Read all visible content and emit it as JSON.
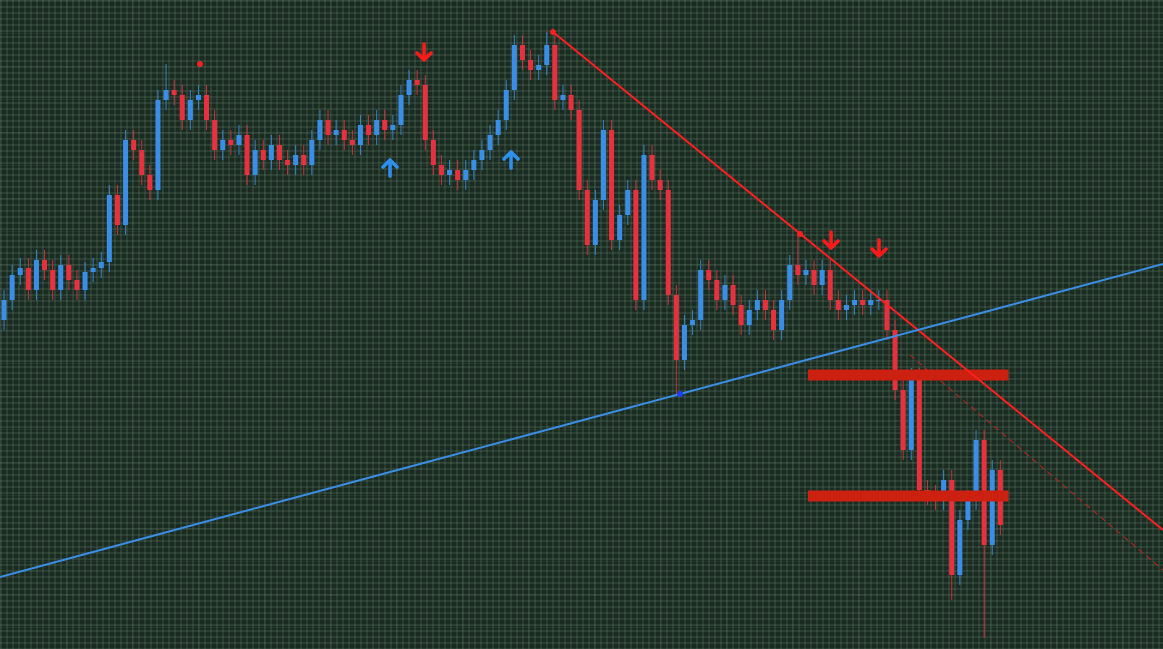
{
  "chart_data": {
    "type": "candlestick",
    "xlim": [
      -0.5,
      143.08
    ],
    "ylim": [
      0,
      649
    ],
    "up_color": "#3a8ee6",
    "down_color": "#e8313f",
    "open": [
      329,
      349,
      374,
      381,
      359,
      389,
      379,
      359,
      384,
      369,
      359,
      377,
      381,
      387,
      454,
      424,
      509,
      499,
      474,
      459,
      549,
      559,
      554,
      529,
      549,
      554,
      529,
      499,
      509,
      504,
      514,
      474,
      499,
      489,
      504,
      489,
      484,
      494,
      484,
      509,
      529,
      514,
      519,
      509,
      504,
      524,
      514,
      529,
      519,
      524,
      554,
      569,
      564,
      509,
      484,
      474,
      479,
      469,
      479,
      489,
      499,
      514,
      529,
      559,
      604,
      589,
      579,
      584,
      604,
      549,
      554,
      539,
      459,
      404,
      449,
      519,
      409,
      434,
      459,
      349,
      494,
      469,
      459,
      354,
      289,
      324,
      329,
      379,
      369,
      349,
      364,
      344,
      324,
      339,
      349,
      339,
      319,
      349,
      384,
      374,
      379,
      364,
      379,
      349,
      339,
      344,
      349,
      344,
      349,
      349,
      319,
      259,
      199,
      271,
      159,
      154,
      149,
      169,
      74,
      129,
      149,
      209,
      104,
      179
    ],
    "high": [
      359,
      384,
      391,
      391,
      399,
      399,
      389,
      394,
      394,
      379,
      387,
      391,
      397,
      464,
      464,
      519,
      519,
      509,
      484,
      559,
      585,
      569,
      564,
      559,
      564,
      564,
      539,
      519,
      519,
      524,
      524,
      509,
      509,
      514,
      514,
      499,
      504,
      504,
      519,
      539,
      539,
      529,
      529,
      519,
      534,
      534,
      539,
      539,
      534,
      564,
      579,
      579,
      574,
      519,
      494,
      489,
      489,
      489,
      499,
      509,
      524,
      539,
      569,
      614,
      614,
      599,
      594,
      617,
      614,
      564,
      564,
      549,
      469,
      459,
      529,
      529,
      444,
      469,
      469,
      504,
      504,
      479,
      469,
      364,
      334,
      339,
      389,
      389,
      379,
      374,
      374,
      354,
      349,
      359,
      359,
      349,
      359,
      394,
      415,
      389,
      389,
      389,
      389,
      359,
      354,
      359,
      359,
      359,
      359,
      359,
      329,
      269,
      281,
      281,
      169,
      164,
      179,
      179,
      139,
      159,
      219,
      219,
      189,
      189
    ],
    "low": [
      319,
      339,
      364,
      349,
      349,
      369,
      349,
      349,
      359,
      349,
      349,
      367,
      371,
      377,
      414,
      414,
      489,
      464,
      449,
      449,
      539,
      544,
      519,
      519,
      539,
      519,
      489,
      489,
      494,
      494,
      464,
      464,
      479,
      479,
      479,
      474,
      474,
      474,
      474,
      499,
      504,
      504,
      499,
      494,
      494,
      504,
      504,
      509,
      509,
      514,
      544,
      554,
      499,
      474,
      464,
      464,
      459,
      459,
      469,
      479,
      489,
      504,
      519,
      549,
      579,
      569,
      569,
      574,
      539,
      539,
      529,
      449,
      394,
      394,
      439,
      399,
      399,
      424,
      339,
      339,
      459,
      449,
      344,
      255,
      279,
      314,
      319,
      359,
      339,
      339,
      334,
      314,
      314,
      329,
      329,
      309,
      309,
      339,
      364,
      364,
      354,
      354,
      339,
      329,
      329,
      334,
      334,
      334,
      339,
      309,
      249,
      189,
      189,
      149,
      144,
      139,
      139,
      49,
      64,
      119,
      139,
      11,
      94,
      114
    ],
    "close": [
      349,
      374,
      381,
      359,
      389,
      379,
      359,
      384,
      369,
      359,
      377,
      381,
      387,
      454,
      424,
      509,
      499,
      474,
      459,
      549,
      559,
      554,
      529,
      549,
      554,
      529,
      499,
      509,
      504,
      514,
      474,
      499,
      489,
      504,
      489,
      484,
      494,
      484,
      509,
      529,
      514,
      519,
      509,
      504,
      524,
      514,
      529,
      519,
      524,
      554,
      569,
      564,
      509,
      484,
      474,
      479,
      469,
      479,
      489,
      499,
      514,
      529,
      559,
      604,
      589,
      579,
      584,
      604,
      549,
      554,
      539,
      459,
      404,
      449,
      519,
      409,
      434,
      459,
      349,
      494,
      469,
      459,
      354,
      289,
      324,
      329,
      379,
      369,
      349,
      364,
      344,
      324,
      339,
      349,
      339,
      319,
      349,
      384,
      374,
      379,
      364,
      379,
      349,
      339,
      344,
      349,
      344,
      349,
      349,
      319,
      259,
      199,
      271,
      159,
      154,
      149,
      169,
      74,
      129,
      149,
      209,
      104,
      179,
      124
    ],
    "trendlines": [
      {
        "color": "#ff1f1f",
        "style": "solid",
        "x": [
          67.77,
          143.08
        ],
        "y": [
          617,
          119
        ]
      },
      {
        "color": "#3a8ee6",
        "style": "solid",
        "x": [
          -0.5,
          143.08
        ],
        "y": [
          72,
          385
        ]
      },
      {
        "color": "#c0221c",
        "style": "dashed",
        "x": [
          111.85,
          143.08
        ],
        "y": [
          294,
          79
        ]
      }
    ],
    "zones": [
      {
        "color": "#cc2010",
        "x": [
          99.25,
          124.0
        ],
        "y": 274
      },
      {
        "color": "#cc2010",
        "x": [
          99.25,
          124.0
        ],
        "y": 153
      }
    ],
    "arrows": [
      {
        "direction": "up",
        "color": "#2f8ff0",
        "x": 47.65,
        "y": 481
      },
      {
        "direction": "up",
        "color": "#2f8ff0",
        "x": 62.59,
        "y": 489
      },
      {
        "direction": "down",
        "color": "#ff1a1a",
        "x": 51.85,
        "y": 597
      },
      {
        "direction": "down",
        "color": "#ff1a1a",
        "x": 102.1,
        "y": 409
      },
      {
        "direction": "down",
        "color": "#ff1a1a",
        "x": 108.02,
        "y": 401
      }
    ],
    "points": [
      {
        "color": "#ff2020",
        "x": 24.19,
        "y": 585
      },
      {
        "color": "#ff2020",
        "x": 67.77,
        "y": 617
      },
      {
        "color": "#ff2020",
        "x": 98.27,
        "y": 415
      },
      {
        "color": "#1f3cff",
        "x": 83.45,
        "y": 255
      }
    ]
  }
}
